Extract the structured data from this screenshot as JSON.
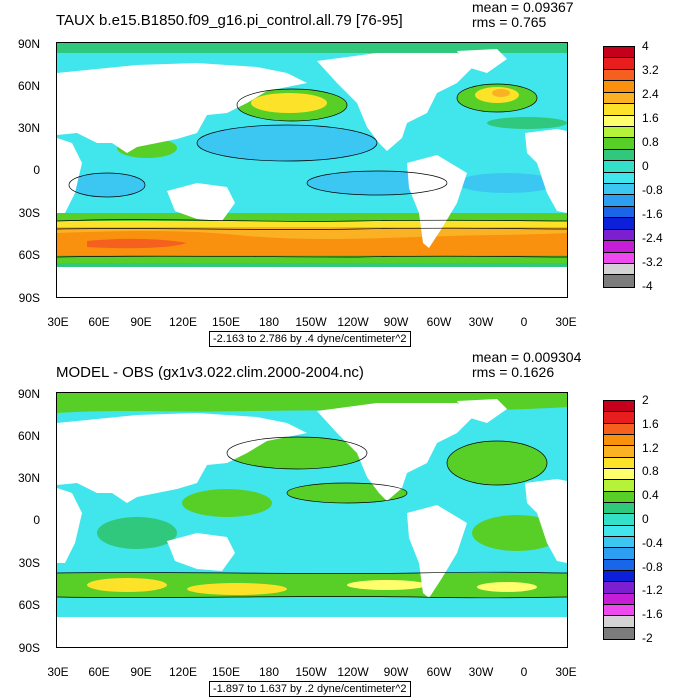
{
  "panels": [
    {
      "title": "TAUX b.e15.B1850.f09_g16.pi_control.all.79 [76-95]",
      "mean": "mean = 0.09367",
      "rms": "rms = 0.765",
      "range_label": "-2.163 to 2.786 by .4 dyne/centimeter^2",
      "colorbar_labels": [
        "4",
        "3.2",
        "2.4",
        "1.6",
        "0.8",
        "0",
        "-0.8",
        "-1.6",
        "-2.4",
        "-3.2",
        "-4"
      ],
      "colors": [
        "#c4001c",
        "#e81d1d",
        "#f5601e",
        "#f9900e",
        "#fbb124",
        "#fde22a",
        "#ffff6e",
        "#b6f23a",
        "#58cf27",
        "#2fc87c",
        "#35e0c8",
        "#41e6ec",
        "#3bc7f2",
        "#2d9ff3",
        "#1a66e8",
        "#0d20d9",
        "#7b1fd1",
        "#c61dd6",
        "#ee49ee",
        "#d3d3d3",
        "#7c7c7c"
      ]
    },
    {
      "title": "MODEL - OBS (gx1v3.022.clim.2000-2004.nc)",
      "mean": "mean = 0.009304",
      "rms": "rms = 0.1626",
      "range_label": "-1.897 to 1.637 by .2 dyne/centimeter^2",
      "colorbar_labels": [
        "2",
        "1.6",
        "1.2",
        "0.8",
        "0.4",
        "0",
        "-0.4",
        "-0.8",
        "-1.2",
        "-1.6",
        "-2"
      ],
      "colors": [
        "#c4001c",
        "#e81d1d",
        "#f5601e",
        "#f9900e",
        "#fbb124",
        "#fde22a",
        "#ffff6e",
        "#b6f23a",
        "#58cf27",
        "#2fc87c",
        "#35e0c8",
        "#41e6ec",
        "#3bc7f2",
        "#2d9ff3",
        "#1a66e8",
        "#0d20d9",
        "#7b1fd1",
        "#c61dd6",
        "#ee49ee",
        "#d3d3d3",
        "#7c7c7c"
      ]
    }
  ],
  "lat_labels": [
    "90N",
    "60N",
    "30N",
    "0",
    "30S",
    "60S",
    "90S"
  ],
  "lon_labels": [
    "30E",
    "60E",
    "90E",
    "120E",
    "150E",
    "180",
    "150W",
    "120W",
    "90W",
    "60W",
    "30W",
    "0",
    "30E"
  ]
}
